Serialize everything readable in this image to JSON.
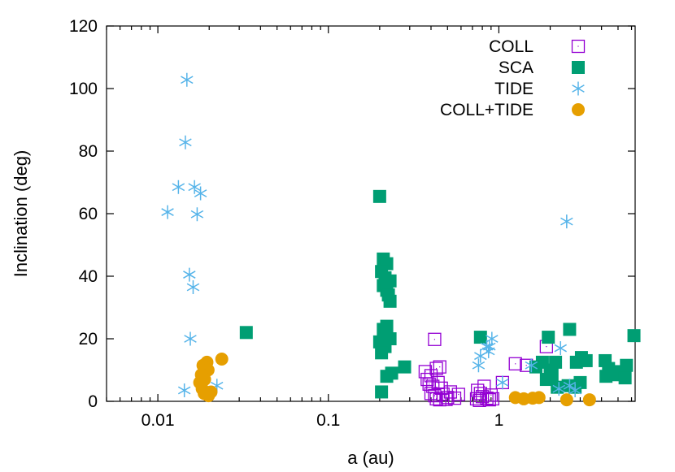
{
  "chart_data": {
    "type": "scatter",
    "title": "",
    "xlabel": "a (au)",
    "ylabel": "Inclination (deg)",
    "xscale": "log",
    "xlim": [
      0.005,
      6.3
    ],
    "ylim": [
      0,
      120
    ],
    "xticks": [
      {
        "value": 0.01,
        "label": "0.01"
      },
      {
        "value": 0.1,
        "label": "0.1"
      },
      {
        "value": 1,
        "label": "1"
      }
    ],
    "yticks": [
      {
        "value": 0,
        "label": "0"
      },
      {
        "value": 20,
        "label": "20"
      },
      {
        "value": 40,
        "label": "40"
      },
      {
        "value": 60,
        "label": "60"
      },
      {
        "value": 80,
        "label": "80"
      },
      {
        "value": 100,
        "label": "100"
      },
      {
        "value": 120,
        "label": "120"
      }
    ],
    "legend_position": "top-right",
    "series": [
      {
        "name": "COLL",
        "marker": "open-square",
        "color": "#9400d3",
        "points": [
          [
            0.42,
            19.8
          ],
          [
            0.37,
            9.5
          ],
          [
            0.38,
            7.0
          ],
          [
            0.4,
            8.2
          ],
          [
            0.43,
            10.5
          ],
          [
            0.45,
            11.0
          ],
          [
            0.39,
            5.5
          ],
          [
            0.41,
            4.8
          ],
          [
            0.44,
            6.0
          ],
          [
            0.46,
            4.2
          ],
          [
            0.4,
            2.5
          ],
          [
            0.42,
            1.8
          ],
          [
            0.43,
            0.8
          ],
          [
            0.47,
            2.3
          ],
          [
            0.5,
            1.2
          ],
          [
            0.52,
            3.0
          ],
          [
            0.55,
            1.0
          ],
          [
            0.58,
            2.2
          ],
          [
            0.45,
            0.5
          ],
          [
            0.49,
            0.6
          ],
          [
            0.75,
            3.5
          ],
          [
            0.78,
            2.5
          ],
          [
            0.8,
            1.5
          ],
          [
            0.82,
            4.8
          ],
          [
            0.85,
            1.0
          ],
          [
            0.88,
            0.5
          ],
          [
            0.74,
            0.8
          ],
          [
            0.9,
            2.0
          ],
          [
            0.92,
            0.8
          ],
          [
            0.77,
            0.3
          ],
          [
            1.25,
            12.0
          ],
          [
            1.45,
            11.5
          ],
          [
            1.9,
            17.5
          ],
          [
            1.05,
            6.0
          ]
        ]
      },
      {
        "name": "SCA",
        "marker": "filled-square",
        "color": "#009e73",
        "points": [
          [
            0.033,
            22.0
          ],
          [
            0.2,
            65.5
          ],
          [
            0.21,
            45.5
          ],
          [
            0.22,
            44.0
          ],
          [
            0.205,
            41.5
          ],
          [
            0.215,
            39.5
          ],
          [
            0.23,
            38.5
          ],
          [
            0.21,
            37.0
          ],
          [
            0.22,
            35.5
          ],
          [
            0.225,
            34.0
          ],
          [
            0.23,
            32.0
          ],
          [
            0.21,
            23.0
          ],
          [
            0.22,
            24.0
          ],
          [
            0.2,
            19.0
          ],
          [
            0.215,
            17.5
          ],
          [
            0.23,
            20.0
          ],
          [
            0.205,
            15.5
          ],
          [
            0.22,
            8.0
          ],
          [
            0.235,
            9.0
          ],
          [
            0.205,
            3.0
          ],
          [
            0.28,
            11.0
          ],
          [
            0.78,
            20.5
          ],
          [
            1.95,
            20.5
          ],
          [
            1.8,
            12.5
          ],
          [
            2.0,
            10.0
          ],
          [
            2.15,
            12.5
          ],
          [
            1.65,
            11.0
          ],
          [
            1.9,
            7.0
          ],
          [
            2.05,
            8.5
          ],
          [
            2.2,
            4.5
          ],
          [
            2.6,
            23.0
          ],
          [
            2.55,
            5.0
          ],
          [
            2.8,
            4.5
          ],
          [
            3.0,
            6.0
          ],
          [
            2.85,
            12.5
          ],
          [
            3.05,
            14.0
          ],
          [
            3.25,
            13.0
          ],
          [
            4.2,
            13.0
          ],
          [
            4.4,
            10.5
          ],
          [
            4.25,
            8.0
          ],
          [
            4.8,
            8.5
          ],
          [
            5.2,
            9.5
          ],
          [
            5.6,
            11.5
          ],
          [
            5.5,
            7.5
          ],
          [
            6.2,
            21.0
          ]
        ]
      },
      {
        "name": "TIDE",
        "marker": "asterisk",
        "color": "#56b4e9",
        "points": [
          [
            0.0148,
            102.8
          ],
          [
            0.0145,
            82.8
          ],
          [
            0.0132,
            68.5
          ],
          [
            0.0164,
            68.5
          ],
          [
            0.0178,
            66.5
          ],
          [
            0.0114,
            60.5
          ],
          [
            0.017,
            59.8
          ],
          [
            0.0153,
            40.5
          ],
          [
            0.0161,
            36.5
          ],
          [
            0.0155,
            20.0
          ],
          [
            0.0143,
            3.5
          ],
          [
            0.0222,
            5.0
          ],
          [
            2.5,
            57.5
          ],
          [
            0.91,
            20.0
          ],
          [
            0.88,
            17.5
          ],
          [
            0.87,
            16.0
          ],
          [
            0.78,
            14.5
          ],
          [
            0.76,
            11.5
          ],
          [
            0.85,
            17.5
          ],
          [
            1.05,
            6.0
          ],
          [
            1.55,
            11.5
          ],
          [
            2.3,
            17.0
          ],
          [
            2.6,
            5.0
          ],
          [
            2.8,
            3.5
          ],
          [
            2.25,
            4.0
          ]
        ]
      },
      {
        "name": "COLL+TIDE",
        "marker": "filled-circle",
        "color": "#e69f00",
        "points": [
          [
            0.0237,
            13.5
          ],
          [
            0.0194,
            12.5
          ],
          [
            0.0184,
            11.5
          ],
          [
            0.0197,
            10.0
          ],
          [
            0.018,
            8.5
          ],
          [
            0.0188,
            7.0
          ],
          [
            0.0176,
            6.0
          ],
          [
            0.0182,
            4.0
          ],
          [
            0.0187,
            2.5
          ],
          [
            0.0205,
            3.0
          ],
          [
            0.0198,
            1.8
          ],
          [
            1.25,
            1.2
          ],
          [
            1.4,
            0.8
          ],
          [
            1.58,
            1.0
          ],
          [
            1.72,
            1.2
          ],
          [
            2.5,
            0.5
          ],
          [
            3.4,
            0.5
          ]
        ]
      }
    ]
  }
}
